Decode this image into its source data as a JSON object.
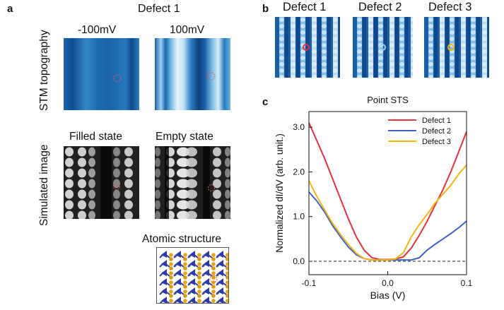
{
  "panel_a": {
    "letter": "a",
    "title": "Defect 1",
    "row1_label": "STM topography",
    "row2_label": "Simulated image",
    "col1_label": "-100mV",
    "col2_label": "100mV",
    "sim1_label": "Filled state",
    "sim2_label": "Empty state",
    "atomic_label": "Atomic structure"
  },
  "panel_b": {
    "letter": "b",
    "labels": [
      "Defect 1",
      "Defect 2",
      "Defect 3"
    ],
    "marker_colors": [
      "#e8323c",
      "#9fd0f0",
      "#f2b90f"
    ]
  },
  "panel_c": {
    "letter": "c",
    "chart_data": {
      "type": "line",
      "title": "Point STS",
      "xlabel": "Bias (V)",
      "ylabel": "Normalized dI/dV (arb. unit.)",
      "xlim": [
        -0.1,
        0.1
      ],
      "ylim": [
        -0.3,
        3.35
      ],
      "x_ticks": [
        "-0.1",
        "0.0",
        "0.1"
      ],
      "y_ticks": [
        "0.0",
        "1.0",
        "2.0",
        "3.0"
      ],
      "x_tick_values": [
        -0.1,
        0.0,
        0.1
      ],
      "y_tick_values": [
        0.0,
        1.0,
        2.0,
        3.0
      ],
      "legend_position": "top-right",
      "baseline": 0.0,
      "x": [
        -0.1,
        -0.09,
        -0.08,
        -0.07,
        -0.06,
        -0.05,
        -0.04,
        -0.03,
        -0.02,
        -0.01,
        0.0,
        0.01,
        0.02,
        0.03,
        0.04,
        0.05,
        0.06,
        0.07,
        0.08,
        0.09,
        0.1
      ],
      "series": [
        {
          "name": "Defect 1",
          "color": "#e8303a",
          "values": [
            3.1,
            2.7,
            2.3,
            1.85,
            1.4,
            0.95,
            0.55,
            0.25,
            0.08,
            0.04,
            0.04,
            0.05,
            0.1,
            0.3,
            0.58,
            0.9,
            1.25,
            1.6,
            2.0,
            2.45,
            2.9
          ]
        },
        {
          "name": "Defect 2",
          "color": "#3a62c8",
          "values": [
            1.55,
            1.35,
            1.1,
            0.8,
            0.55,
            0.32,
            0.15,
            0.06,
            0.03,
            0.03,
            0.03,
            0.03,
            0.03,
            0.03,
            0.08,
            0.25,
            0.38,
            0.5,
            0.62,
            0.75,
            0.9
          ]
        },
        {
          "name": "Defect 3",
          "color": "#f2b50f",
          "values": [
            1.8,
            1.45,
            1.15,
            0.85,
            0.6,
            0.38,
            0.18,
            0.06,
            0.03,
            0.03,
            0.03,
            0.05,
            0.2,
            0.55,
            0.82,
            1.05,
            1.3,
            1.5,
            1.7,
            1.95,
            2.15
          ]
        }
      ]
    }
  }
}
